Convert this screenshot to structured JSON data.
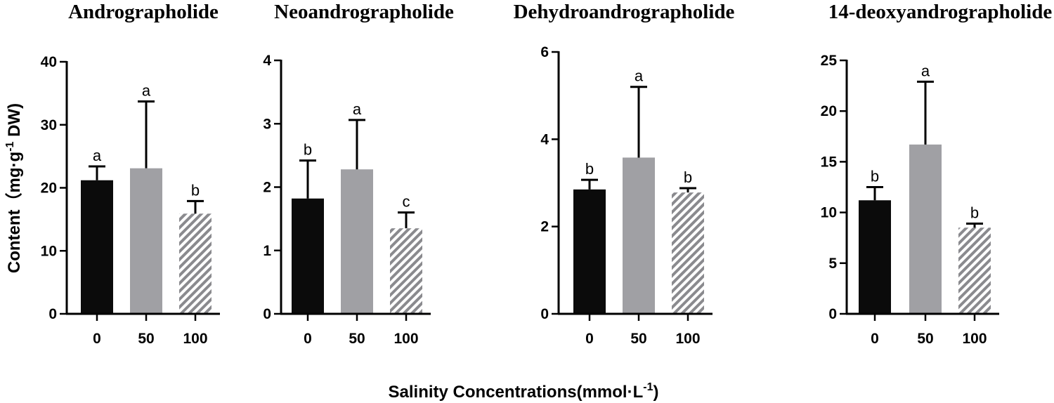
{
  "figure": {
    "ylabel_main": "Content（mg·g",
    "ylabel_sup": "-1",
    "ylabel_end": " DW)",
    "xlabel_main": "Salinity Concentrations(mmol·L",
    "xlabel_sup": "-1",
    "xlabel_end": ")",
    "colors": {
      "0": "#0b0b0b",
      "50": "#a0a0a4",
      "100_stripe": "#8a8a8e",
      "axis": "#000000"
    }
  },
  "chart_data": [
    {
      "type": "bar",
      "title": "Andrographolide",
      "categories": [
        "0",
        "50",
        "100"
      ],
      "values": [
        21.2,
        23.1,
        15.9
      ],
      "errors": [
        2.2,
        10.6,
        2.0
      ],
      "significance": [
        "a",
        "a",
        "b"
      ],
      "ylim": [
        0,
        40
      ],
      "yticks": [
        0,
        10,
        20,
        30,
        40
      ],
      "ylabel": "Content（mg·g-1 DW)",
      "xlabel": "Salinity Concentrations(mmol·L-1)"
    },
    {
      "type": "bar",
      "title": "Neoandrographolide",
      "categories": [
        "0",
        "50",
        "100"
      ],
      "values": [
        1.82,
        2.28,
        1.35
      ],
      "errors": [
        0.6,
        0.78,
        0.25
      ],
      "significance": [
        "b",
        "a",
        "c"
      ],
      "ylim": [
        0,
        4
      ],
      "yticks": [
        0,
        1,
        2,
        3,
        4
      ],
      "ylabel": "Content（mg·g-1 DW)",
      "xlabel": "Salinity Concentrations(mmol·L-1)"
    },
    {
      "type": "bar",
      "title": "Dehydroandrographolide",
      "categories": [
        "0",
        "50",
        "100"
      ],
      "values": [
        2.85,
        3.58,
        2.78
      ],
      "errors": [
        0.22,
        1.62,
        0.1
      ],
      "significance": [
        "b",
        "a",
        "b"
      ],
      "ylim": [
        0,
        6
      ],
      "yticks": [
        0,
        2,
        4,
        6
      ],
      "ylabel": "Content（mg·g-1 DW)",
      "xlabel": "Salinity Concentrations(mmol·L-1)"
    },
    {
      "type": "bar",
      "title": "14-deoxyandrographolide",
      "categories": [
        "0",
        "50",
        "100"
      ],
      "values": [
        11.2,
        16.7,
        8.5
      ],
      "errors": [
        1.3,
        6.2,
        0.4
      ],
      "significance": [
        "b",
        "a",
        "b"
      ],
      "ylim": [
        0,
        25
      ],
      "yticks": [
        0,
        5,
        10,
        15,
        20,
        25
      ],
      "ylabel": "Content（mg·g-1 DW)",
      "xlabel": "Salinity Concentrations(mmol·L-1)"
    }
  ]
}
